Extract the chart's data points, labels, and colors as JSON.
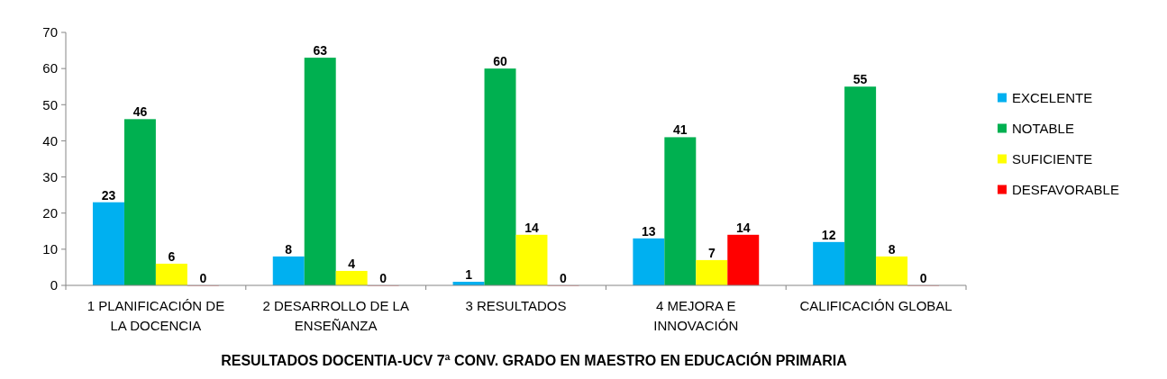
{
  "chart_data": {
    "type": "bar",
    "title": "RESULTADOS DOCENTIA-UCV 7ª CONV. GRADO EN MAESTRO EN EDUCACIÓN PRIMARIA",
    "categories": [
      "1 PLANIFICACIÓN DE LA DOCENCIA",
      "2 DESARROLLO DE LA ENSEÑANZA",
      "3 RESULTADOS",
      "4 MEJORA E INNOVACIÓN",
      "CALIFICACIÓN GLOBAL"
    ],
    "series": [
      {
        "name": "EXCELENTE",
        "color": "#00b0f0",
        "values": [
          23,
          8,
          1,
          13,
          12
        ]
      },
      {
        "name": "NOTABLE",
        "color": "#00b050",
        "values": [
          46,
          63,
          60,
          41,
          55
        ]
      },
      {
        "name": "SUFICIENTE",
        "color": "#ffff00",
        "values": [
          6,
          4,
          14,
          7,
          8
        ]
      },
      {
        "name": "DESFAVORABLE",
        "color": "#ff0000",
        "values": [
          0,
          0,
          0,
          14,
          0
        ]
      }
    ],
    "ylim": [
      0,
      70
    ],
    "yticks": [
      0,
      10,
      20,
      30,
      40,
      50,
      60,
      70
    ],
    "data_labels": true,
    "legend": "right"
  }
}
